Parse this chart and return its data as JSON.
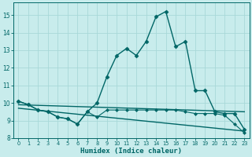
{
  "xlabel": "Humidex (Indice chaleur)",
  "bg_color": "#c8ecec",
  "line_color": "#006666",
  "grid_color": "#b0d8d8",
  "xlim": [
    -0.5,
    23.5
  ],
  "ylim": [
    8.0,
    15.7
  ],
  "yticks": [
    8,
    9,
    10,
    11,
    12,
    13,
    14,
    15
  ],
  "xticks": [
    0,
    1,
    2,
    3,
    4,
    5,
    6,
    7,
    8,
    9,
    10,
    11,
    12,
    13,
    14,
    15,
    16,
    17,
    18,
    19,
    20,
    21,
    22,
    23
  ],
  "series": [
    {
      "x": [
        0,
        1,
        2,
        3,
        4,
        5,
        6,
        7,
        8,
        9,
        10,
        11,
        12,
        13,
        14,
        15,
        16,
        17,
        18,
        19,
        20,
        21,
        22,
        23
      ],
      "y": [
        10.1,
        9.9,
        9.6,
        9.5,
        9.2,
        9.1,
        8.8,
        9.5,
        10.0,
        11.5,
        12.7,
        13.1,
        12.7,
        13.5,
        14.9,
        15.2,
        13.2,
        13.5,
        10.7,
        10.7,
        9.5,
        9.4,
        9.4,
        8.5
      ],
      "marker": "D",
      "markersize": 2.5,
      "linewidth": 1.0,
      "linestyle": "-"
    },
    {
      "x": [
        0,
        1,
        2,
        3,
        4,
        5,
        6,
        7,
        8,
        9,
        10,
        11,
        12,
        13,
        14,
        15,
        16,
        17,
        18,
        19,
        20,
        21,
        22,
        23
      ],
      "y": [
        10.1,
        9.9,
        9.6,
        9.5,
        9.2,
        9.1,
        8.8,
        9.5,
        9.2,
        9.6,
        9.6,
        9.6,
        9.6,
        9.6,
        9.6,
        9.6,
        9.6,
        9.5,
        9.4,
        9.4,
        9.4,
        9.3,
        8.8,
        8.3
      ],
      "marker": "D",
      "markersize": 2.0,
      "linewidth": 0.8,
      "linestyle": "-"
    },
    {
      "x": [
        0,
        23
      ],
      "y": [
        9.9,
        9.5
      ],
      "marker": null,
      "markersize": 0,
      "linewidth": 1.0,
      "linestyle": "-"
    },
    {
      "x": [
        0,
        23
      ],
      "y": [
        9.7,
        8.4
      ],
      "marker": null,
      "markersize": 0,
      "linewidth": 1.0,
      "linestyle": "-"
    }
  ]
}
